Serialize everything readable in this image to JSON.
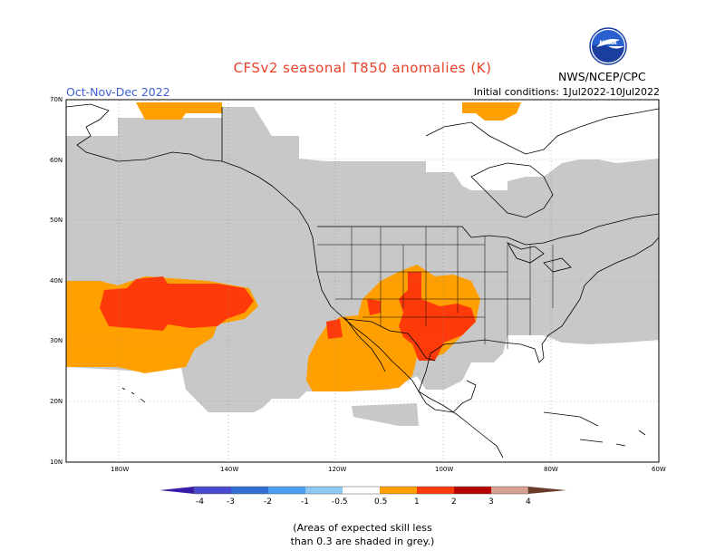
{
  "title": "CFSv2 seasonal T850 anomalies (K)",
  "season": "Oct-Nov-Dec 2022",
  "initial_conditions": "Initial conditions: 1Jul2022-10Jul2022",
  "agency": "NWS/NCEP/CPC",
  "logo_text": "NOAA",
  "note_line1": "(Areas of expected skill less",
  "note_line2": "than 0.3 are shaded in grey.)",
  "lat_labels": [
    "70N",
    "60N",
    "50N",
    "40N",
    "30N",
    "20N",
    "10N"
  ],
  "lon_labels": [
    "180W",
    "140W",
    "120W",
    "100W",
    "80W",
    "60W"
  ],
  "colorbar": {
    "labels": [
      "-4",
      "-3",
      "-2",
      "-1",
      "-0.5",
      "0.5",
      "1",
      "2",
      "3",
      "4"
    ],
    "colors": [
      "#3a1aa8",
      "#4a4ad0",
      "#2f6fd6",
      "#4a9ff0",
      "#8ec9f5",
      "#ffffff",
      "#ffa000",
      "#ff3a0a",
      "#b40000",
      "#d8a090",
      "#6a3a2a"
    ]
  },
  "colors": {
    "grey_skill": "#c8c8c8",
    "anom_0_5_1": "#ffa000",
    "anom_1_2": "#ff3a0a",
    "map_line": "#000000"
  }
}
